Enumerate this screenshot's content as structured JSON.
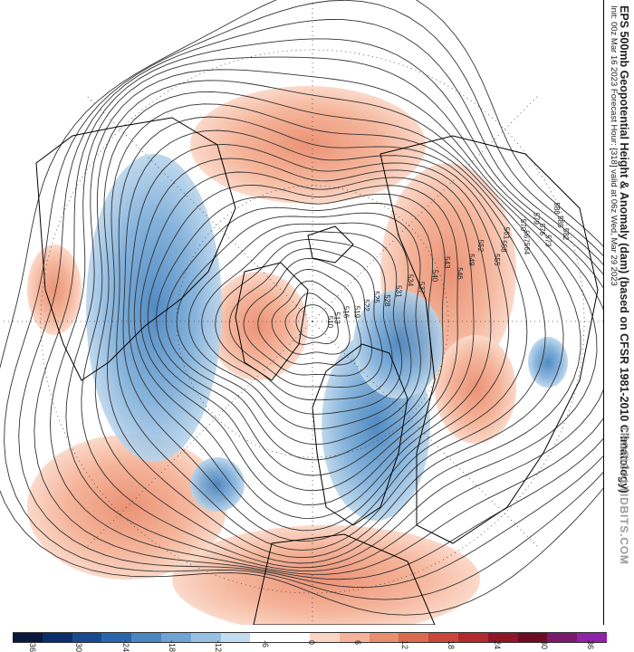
{
  "title": {
    "main": "EPS 500mb Geopotential Height & Anomaly (dam) (based on CFSR 1981-2010 Climatology)",
    "sub": "Init: 00z Mar 16 2023   Forecast Hour: [318]   valid at 06z Wed, Mar 29 2023",
    "site": "TROPICALTIDBITS.COM"
  },
  "colorbar": {
    "ticks": [
      "-36",
      "-30",
      "-24",
      "-18",
      "-12",
      "-6",
      "0",
      "6",
      "12",
      "18",
      "24",
      "30",
      "36"
    ],
    "colors": [
      "#08193d",
      "#0c2d6b",
      "#184a8f",
      "#2a66ad",
      "#4a86c2",
      "#6fa3d4",
      "#98c0e2",
      "#c4dcef",
      "#ffffff",
      "#ffffff",
      "#fbd5c4",
      "#f4b39a",
      "#ea8e70",
      "#dc6a4f",
      "#c9463a",
      "#b02a2e",
      "#901626",
      "#6e0b23",
      "#7a1a6e",
      "#8e22a8"
    ]
  },
  "contour_labels": [
    "588",
    "585",
    "582",
    "579",
    "576",
    "573",
    "570",
    "567",
    "564",
    "561",
    "558",
    "555",
    "552",
    "549",
    "546",
    "543",
    "540",
    "537",
    "534",
    "531",
    "528",
    "525",
    "522",
    "519",
    "516",
    "513",
    "510"
  ],
  "colors": {
    "positive_anomaly": "#f2a88a",
    "negative_anomaly": "#6fa3d4",
    "contour": "#333333",
    "coast": "#000000"
  }
}
